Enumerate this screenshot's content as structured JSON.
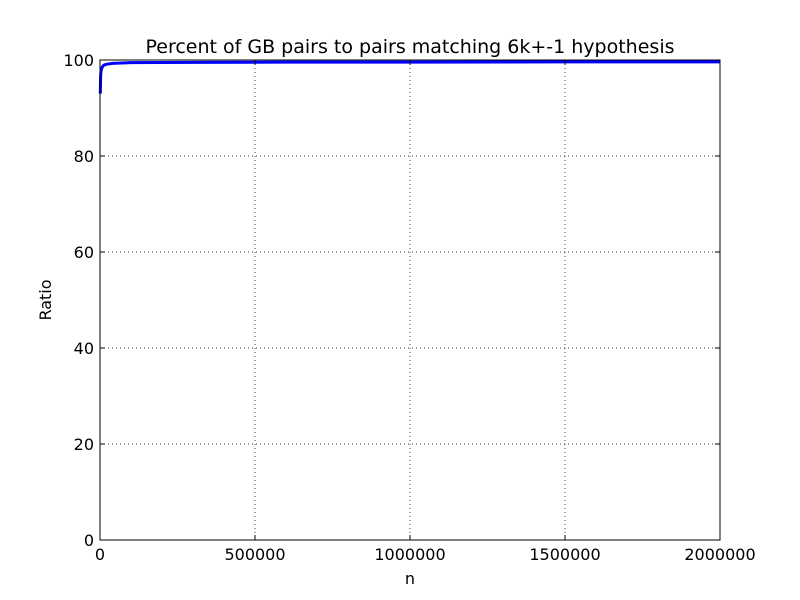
{
  "chart_data": {
    "type": "line",
    "title": "Percent of GB pairs to pairs matching 6k+-1 hypothesis",
    "xlabel": "n",
    "ylabel": "Ratio",
    "xlim": [
      0,
      2000000
    ],
    "ylim": [
      0,
      100
    ],
    "xticks": [
      0,
      500000,
      1000000,
      1500000,
      2000000
    ],
    "xtick_labels": [
      "0",
      "500000",
      "1000000",
      "1500000",
      "2000000"
    ],
    "yticks": [
      0,
      20,
      40,
      60,
      80,
      100
    ],
    "ytick_labels": [
      "0",
      "20",
      "40",
      "60",
      "80",
      "100"
    ],
    "grid": true,
    "series_color": "#0000ff",
    "series": [
      {
        "x": [
          1000,
          2000,
          3000,
          5000,
          8000,
          12000,
          20000,
          40000,
          100000,
          300000,
          600000,
          1000000,
          1500000,
          2000000
        ],
        "y": [
          93,
          96.5,
          97.5,
          98.2,
          98.6,
          98.9,
          99.1,
          99.3,
          99.45,
          99.5,
          99.55,
          99.55,
          99.6,
          99.6
        ]
      }
    ]
  }
}
